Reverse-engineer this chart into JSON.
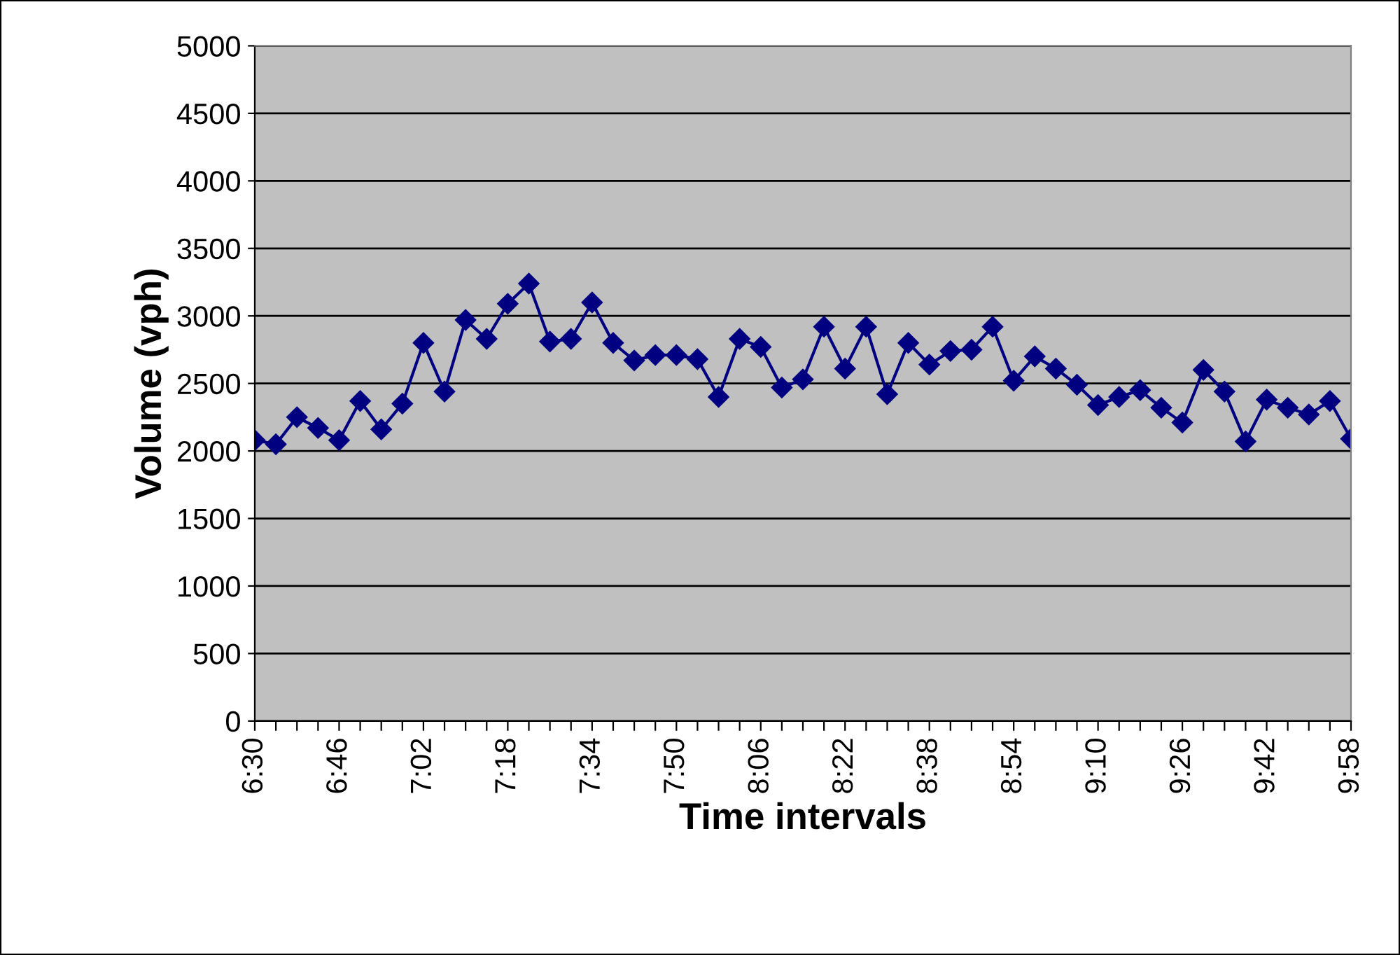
{
  "chart_data": {
    "type": "line",
    "xlabel": "Time intervals",
    "ylabel": "Volume (vph)",
    "categories": [
      "6:30",
      null,
      null,
      null,
      "6:46",
      null,
      null,
      null,
      "7:02",
      null,
      null,
      null,
      "7:18",
      null,
      null,
      null,
      "7:34",
      null,
      null,
      null,
      "7:50",
      null,
      null,
      null,
      "8:06",
      null,
      null,
      null,
      "8:22",
      null,
      null,
      null,
      "8:38",
      null,
      null,
      null,
      "8:54",
      null,
      null,
      null,
      "9:10",
      null,
      null,
      null,
      "9:26",
      null,
      null,
      null,
      "9:42",
      null,
      null,
      null,
      "9:58"
    ],
    "series": [
      {
        "color": "#000080",
        "values": [
          2080,
          2050,
          2250,
          2170,
          2080,
          2370,
          2160,
          2350,
          2800,
          2440,
          2970,
          2830,
          3090,
          3240,
          2810,
          2830,
          3100,
          2800,
          2670,
          2710,
          2710,
          2680,
          2400,
          2830,
          2770,
          2470,
          2530,
          2920,
          2610,
          2920,
          2420,
          2800,
          2640,
          2740,
          2750,
          2920,
          2520,
          2700,
          2610,
          2490,
          2340,
          2400,
          2450,
          2320,
          2210,
          2600,
          2440,
          2070,
          2380,
          2320,
          2270,
          2370,
          2090
        ]
      }
    ],
    "ylim": [
      0,
      5000
    ],
    "yticks": [
      0,
      500,
      1000,
      1500,
      2000,
      2500,
      3000,
      3500,
      4000,
      4500,
      5000
    ],
    "grid": "y",
    "marker": "diamond",
    "line_style": "solid",
    "legend": false
  }
}
